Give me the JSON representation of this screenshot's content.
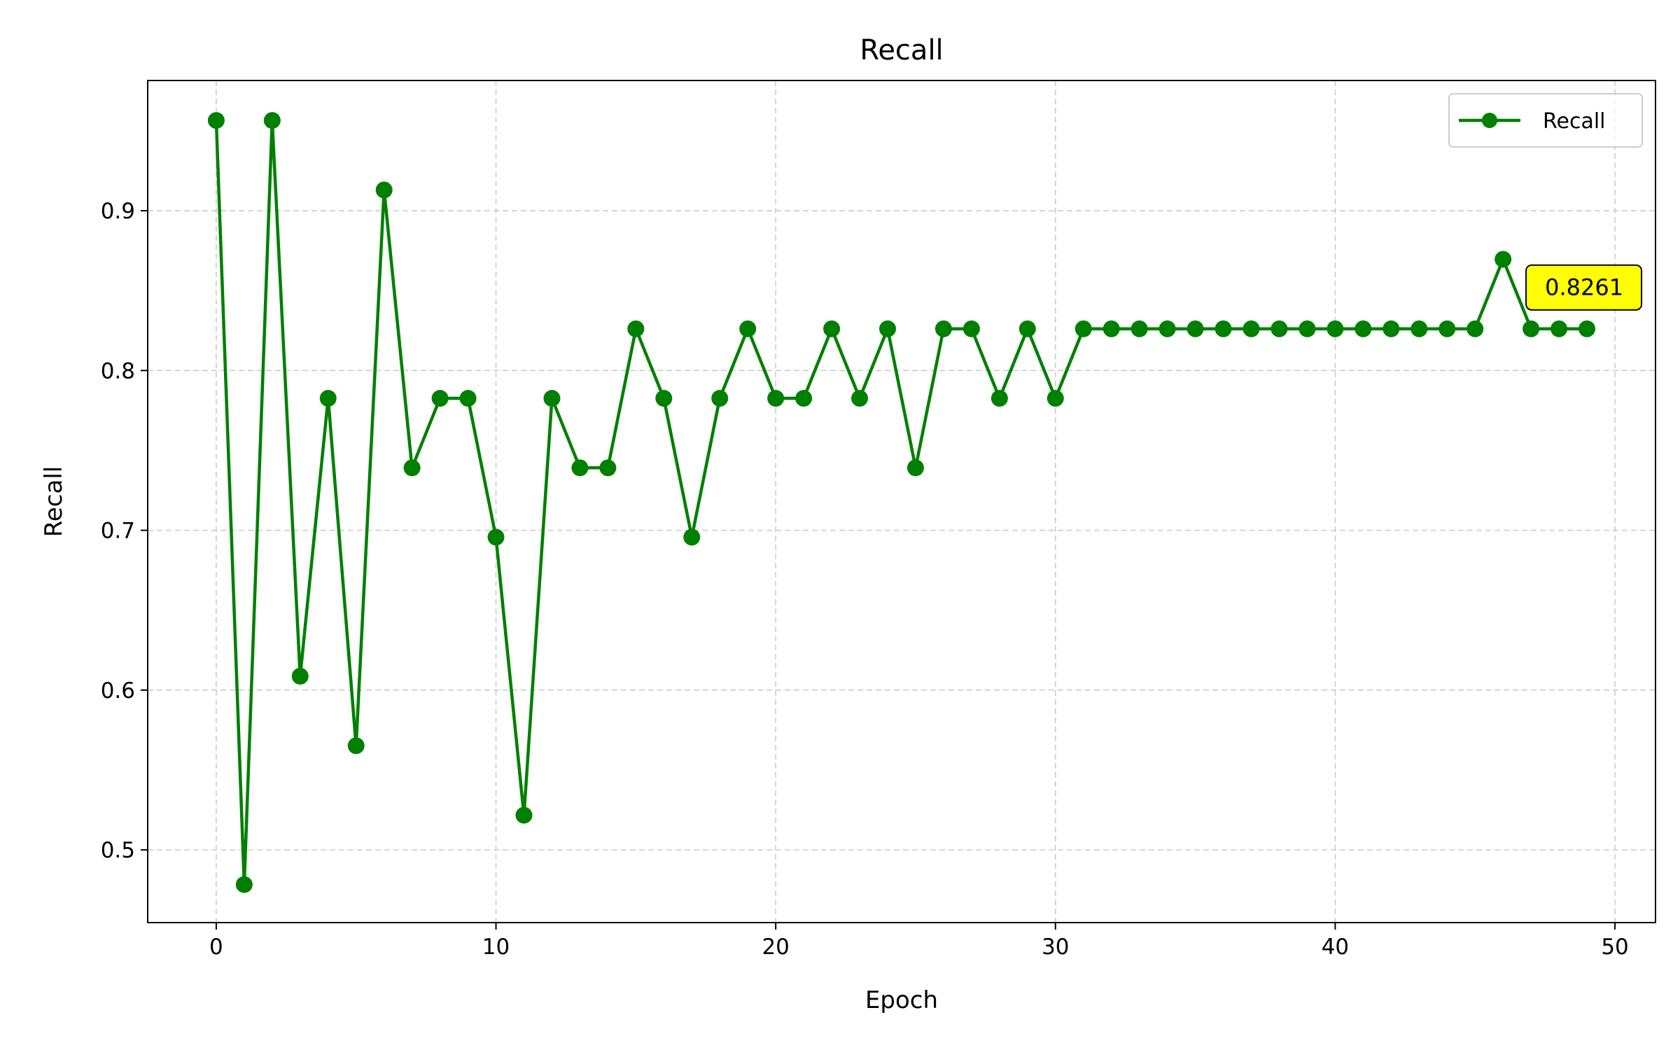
{
  "chart_data": {
    "type": "line",
    "title": "Recall",
    "xlabel": "Epoch",
    "ylabel": "Recall",
    "xlim": [
      -2.45,
      51.45
    ],
    "ylim": [
      0.4545,
      0.9815
    ],
    "xticks": [
      0,
      10,
      20,
      30,
      40,
      50
    ],
    "yticks": [
      0.5,
      0.6,
      0.7,
      0.8,
      0.9
    ],
    "xtick_labels": [
      "0",
      "10",
      "20",
      "30",
      "40",
      "50"
    ],
    "ytick_labels": [
      "0.5",
      "0.6",
      "0.7",
      "0.8",
      "0.9"
    ],
    "grid": true,
    "grid_style": "dashed",
    "legend": {
      "position": "top-right",
      "entries": [
        "Recall"
      ]
    },
    "series": [
      {
        "name": "Recall",
        "color": "#008000",
        "marker": "circle",
        "x": [
          0,
          1,
          2,
          3,
          4,
          5,
          6,
          7,
          8,
          9,
          10,
          11,
          12,
          13,
          14,
          15,
          16,
          17,
          18,
          19,
          20,
          21,
          22,
          23,
          24,
          25,
          26,
          27,
          28,
          29,
          30,
          31,
          32,
          33,
          34,
          35,
          36,
          37,
          38,
          39,
          40,
          41,
          42,
          43,
          44,
          45,
          46,
          47,
          48,
          49
        ],
        "values": [
          0.9565,
          0.4783,
          0.9565,
          0.6087,
          0.7826,
          0.5652,
          0.913,
          0.7391,
          0.7826,
          0.7826,
          0.6957,
          0.5217,
          0.7826,
          0.7391,
          0.7391,
          0.8261,
          0.7826,
          0.6957,
          0.7826,
          0.8261,
          0.7826,
          0.7826,
          0.8261,
          0.7826,
          0.8261,
          0.7391,
          0.8261,
          0.8261,
          0.7826,
          0.8261,
          0.7826,
          0.8261,
          0.8261,
          0.8261,
          0.8261,
          0.8261,
          0.8261,
          0.8261,
          0.8261,
          0.8261,
          0.8261,
          0.8261,
          0.8261,
          0.8261,
          0.8261,
          0.8261,
          0.8696,
          0.8261,
          0.8261,
          0.8261
        ]
      }
    ],
    "annotations": [
      {
        "text": "0.8261",
        "x": 49,
        "y": 0.8261,
        "background": "#ffff00"
      }
    ]
  }
}
